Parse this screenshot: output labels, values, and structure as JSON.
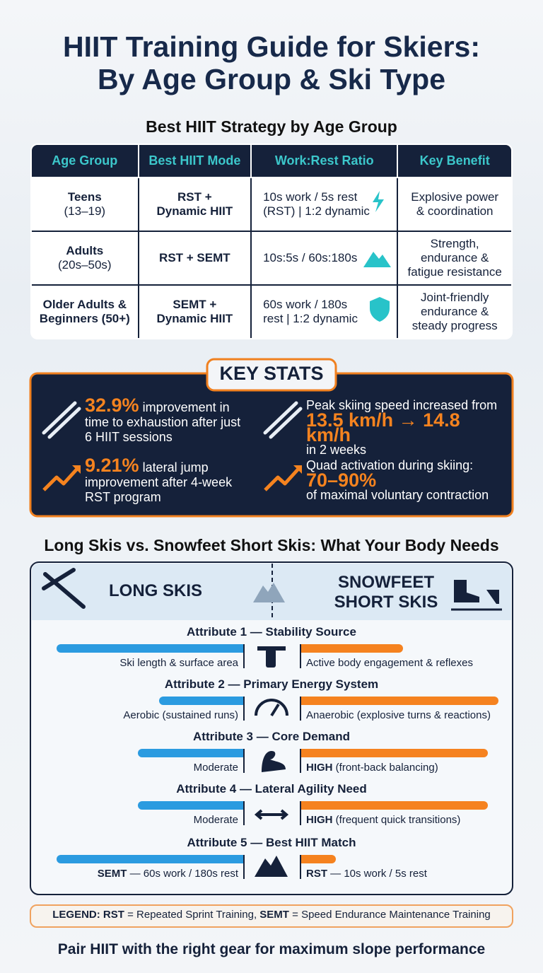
{
  "title": [
    "HIIT Training Guide for Skiers:",
    "By Age Group & Ski Type"
  ],
  "age_table": {
    "heading": "Best HIIT Strategy by Age Group",
    "columns": [
      "Age Group",
      "Best HIIT Mode",
      "Work:Rest Ratio",
      "Key Benefit"
    ],
    "rows": [
      [
        [
          "Teens",
          "(13–19)"
        ],
        [
          "RST +",
          "Dynamic HIIT"
        ],
        [
          "10s work / 5s rest",
          "(RST) | 1:2 dynamic"
        ],
        [
          "Explosive power",
          "& coordination"
        ]
      ],
      [
        [
          "Adults",
          "(20s–50s)"
        ],
        [
          "RST + SEMT"
        ],
        [
          "10s:5s / 60s:180s"
        ],
        [
          "Strength,",
          "endurance &",
          "fatigue resistance"
        ]
      ],
      [
        [
          "Older Adults &",
          "Beginners (50+)"
        ],
        [
          "SEMT +",
          "Dynamic HIIT"
        ],
        [
          "60s work / 180s",
          "rest | 1:2 dynamic"
        ],
        [
          "Joint-friendly",
          "endurance &",
          "steady progress"
        ]
      ]
    ]
  },
  "key_stats": {
    "heading": "KEY STATS",
    "stats": [
      {
        "big": "32.9%",
        "post": "improvement in time to exhaustion after just 6 HIIT sessions"
      },
      {
        "pre": "Peak skiing speed increased from",
        "big": "13.5 km/h → 14.8 km/h",
        "post": "in 2 weeks"
      },
      {
        "big": "9.21%",
        "post": "lateral jump improvement after 4-week RST program"
      },
      {
        "pre": "Quad activation during skiing:",
        "big": "70–90%",
        "post": "of maximal voluntary contraction"
      }
    ]
  },
  "comparison": {
    "heading": "Long Skis vs. Snowfeet Short Skis: What Your Body Needs",
    "left_title": "LONG SKIS",
    "right_title": [
      "SNOWFEET",
      "SHORT SKIS"
    ],
    "attributes": [
      {
        "title": "Attribute 1 — Stability Source",
        "left": [
          {
            "text": "Ski length & surface area"
          }
        ],
        "right": [
          {
            "text": "Active body engagement & reflexes"
          }
        ]
      },
      {
        "title": "Attribute 2 — Primary Energy System",
        "left": [
          {
            "text": "Aerobic (sustained runs)"
          }
        ],
        "right": [
          {
            "text": "Anaerobic (explosive turns & reactions)"
          }
        ]
      },
      {
        "title": "Attribute 3 — Core Demand",
        "left": [
          {
            "text": "Moderate"
          }
        ],
        "right": [
          {
            "strong": "HIGH",
            "text": " (front-back balancing)"
          }
        ]
      },
      {
        "title": "Attribute 4 — Lateral Agility Need",
        "left": [
          {
            "text": "Moderate"
          }
        ],
        "right": [
          {
            "strong": "HIGH",
            "text": " (frequent quick transitions)"
          }
        ]
      },
      {
        "title": "Attribute 5 — Best HIIT Match",
        "left": [
          {
            "strong": "SEMT",
            "text": " — 60s work / 180s rest"
          }
        ],
        "right": [
          {
            "strong": "RST",
            "text": " — 10s work / 5s rest"
          }
        ]
      }
    ]
  },
  "legend": [
    {
      "strong": "LEGEND: RST",
      "text": " = Repeated Sprint Training, "
    },
    {
      "strong": "SEMT",
      "text": " = Speed Endurance Maintenance Training"
    }
  ],
  "footer": "Pair HIIT with the right gear for maximum slope performance"
}
